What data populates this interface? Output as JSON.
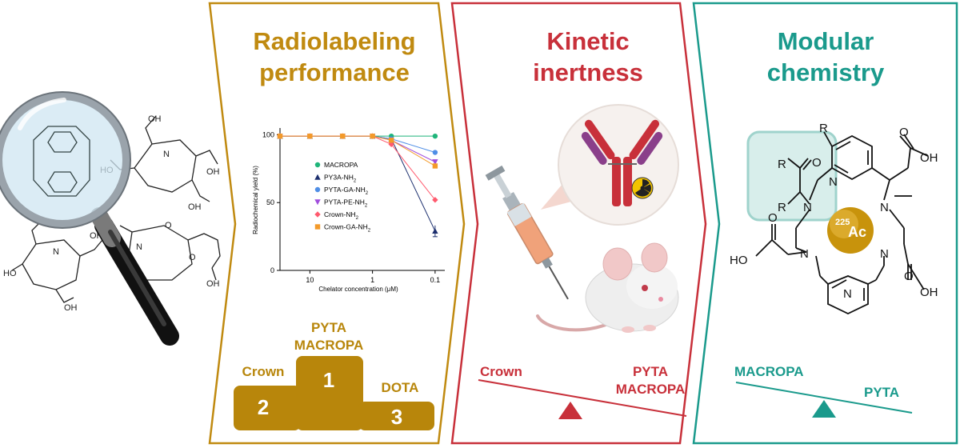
{
  "colors": {
    "gold": "#c08a10",
    "red": "#c8303a",
    "teal": "#1a9a8c",
    "podium": "#b8860b"
  },
  "panels": {
    "radiolabeling": {
      "title_line1": "Radiolabeling",
      "title_line2": "performance"
    },
    "kinetic": {
      "title_line1": "Kinetic",
      "title_line2": "inertness"
    },
    "modular": {
      "title_line1": "Modular",
      "title_line2": "chemistry"
    }
  },
  "podium": {
    "first_label_line1": "PYTA",
    "first_label_line2": "MACROPA",
    "first_rank": "1",
    "second_label": "Crown",
    "second_rank": "2",
    "third_label": "DOTA",
    "third_rank": "3"
  },
  "balance_kinetic": {
    "left": "Crown",
    "right_line1": "PYTA",
    "right_line2": "MACROPA"
  },
  "balance_modular": {
    "left": "MACROPA",
    "right": "PYTA"
  },
  "chem_labels": {
    "oh": "OH",
    "ho": "HO",
    "o": "O",
    "n": "N",
    "r": "R",
    "ac_mass": "225",
    "ac": "Ac"
  },
  "chart_data": {
    "type": "line",
    "xlabel": "Chelator concentration (μM)",
    "ylabel": "Radiochemical yield (%)",
    "x_scale": "log, reversed",
    "xticks": [
      "10",
      "1",
      "0.1"
    ],
    "yticks": [
      "0",
      "50",
      "100"
    ],
    "x": [
      30,
      10,
      3,
      1,
      0.5,
      0.1
    ],
    "series": [
      {
        "name": "MACROPA",
        "sub": "",
        "color": "#1fb57a",
        "marker": "circle",
        "values": [
          99,
          99,
          99,
          99,
          99,
          99
        ]
      },
      {
        "name": "PY3A-NH",
        "sub": "2",
        "color": "#1c2f6e",
        "marker": "triangle-up",
        "values": [
          99,
          99,
          99,
          99,
          97,
          29
        ]
      },
      {
        "name": "PYTA-GA-NH",
        "sub": "2",
        "color": "#4f8ee6",
        "marker": "circle",
        "values": [
          99,
          99,
          99,
          99,
          97,
          87
        ]
      },
      {
        "name": "PYTA-PE-NH",
        "sub": "2",
        "color": "#a04ddc",
        "marker": "triangle-down",
        "values": [
          99,
          99,
          99,
          99,
          96,
          80
        ]
      },
      {
        "name": "Crown-NH",
        "sub": "2",
        "color": "#ff5a6e",
        "marker": "diamond",
        "values": [
          99,
          99,
          99,
          99,
          93,
          52
        ]
      },
      {
        "name": "Crown-GA-NH",
        "sub": "2",
        "color": "#f39a2a",
        "marker": "square",
        "values": [
          99,
          99,
          99,
          99,
          96,
          77
        ]
      }
    ]
  }
}
